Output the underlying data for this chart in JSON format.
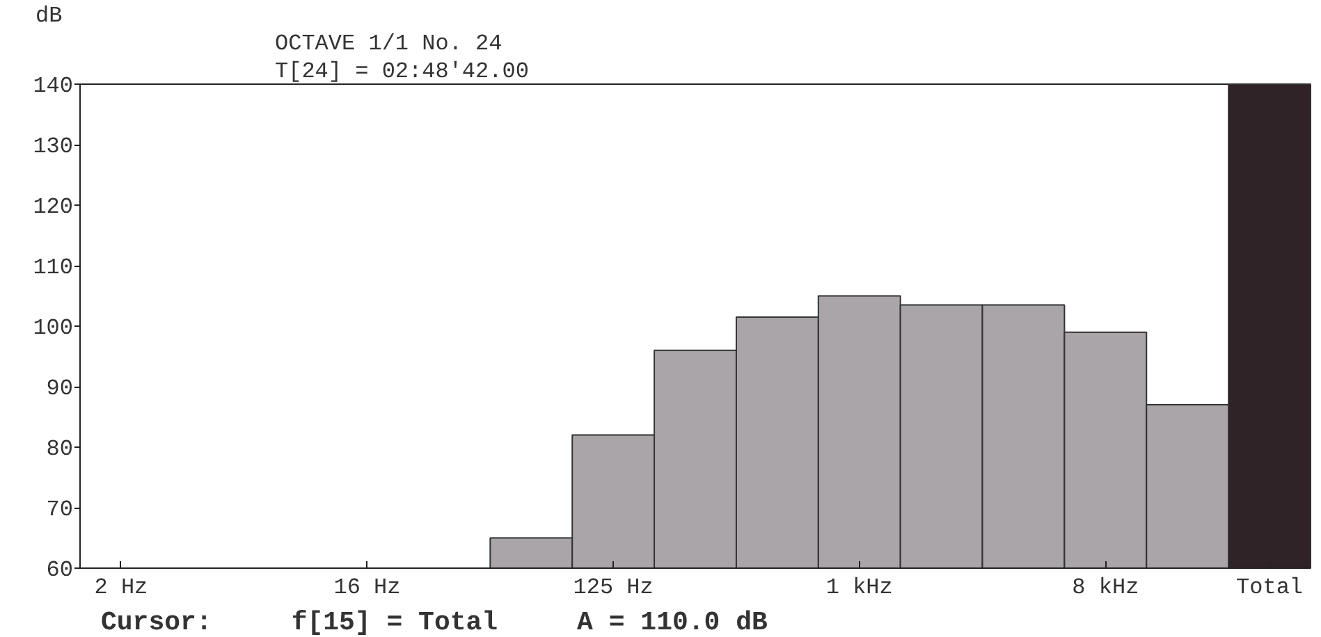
{
  "chart_data": {
    "type": "bar",
    "title": "OCTAVE 1/1 No. 24",
    "subtitle": "T[24] = 02:48'42.00",
    "ylabel": "dB",
    "categories": [
      "2 Hz",
      null,
      null,
      "16 Hz",
      null,
      null,
      "125 Hz",
      null,
      null,
      "1 kHz",
      null,
      null,
      "8 kHz",
      null,
      "Total"
    ],
    "values": [
      null,
      null,
      null,
      null,
      null,
      65,
      82,
      96,
      101.5,
      105,
      103.5,
      103.5,
      99,
      87,
      140
    ],
    "colors": [
      "#a9a5a9",
      "#a9a5a9",
      "#a9a5a9",
      "#a9a5a9",
      "#a9a5a9",
      "#a9a5a9",
      "#a9a5a9",
      "#a9a5a9",
      "#a9a5a9",
      "#a9a5a9",
      "#a9a5a9",
      "#a9a5a9",
      "#a9a5a9",
      "#a9a5a9",
      "#2f2327"
    ],
    "ylim": [
      60,
      140
    ],
    "yticks": [
      60,
      70,
      80,
      90,
      100,
      110,
      120,
      130,
      140
    ],
    "grid": false,
    "annotations": [
      "Cursor:",
      "f[15] = Total",
      "A = 110.0 dB"
    ]
  }
}
